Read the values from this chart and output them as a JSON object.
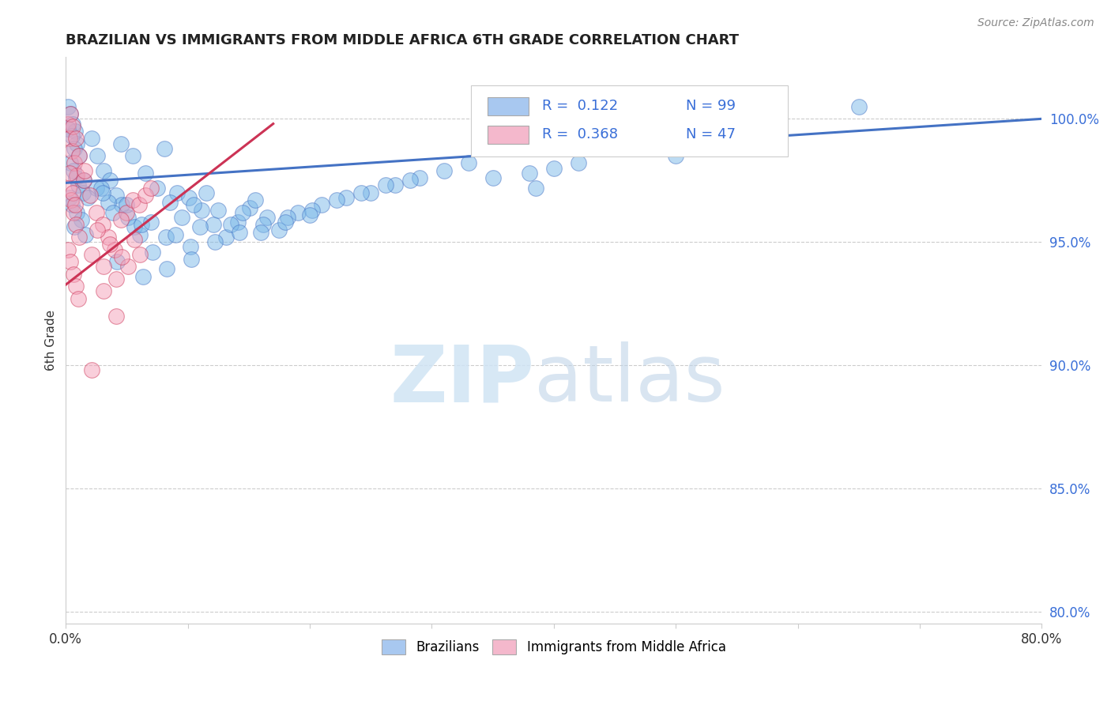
{
  "title": "BRAZILIAN VS IMMIGRANTS FROM MIDDLE AFRICA 6TH GRADE CORRELATION CHART",
  "source": "Source: ZipAtlas.com",
  "ylabel": "6th Grade",
  "xlim": [
    0.0,
    80.0
  ],
  "ylim": [
    79.5,
    102.5
  ],
  "yticks": [
    80.0,
    85.0,
    90.0,
    95.0,
    100.0
  ],
  "ytick_labels": [
    "80.0%",
    "85.0%",
    "90.0%",
    "95.0%",
    "100.0%"
  ],
  "xticks": [
    0.0,
    10.0,
    20.0,
    30.0,
    40.0,
    50.0,
    60.0,
    70.0,
    80.0
  ],
  "legend_color1": "#a8c8f0",
  "legend_color2": "#f4b8cc",
  "line_color1": "#4472c4",
  "line_color2": "#cc3355",
  "scatter_color1": "#7ab8e8",
  "scatter_color2": "#f4a0b8",
  "blue_line": [
    [
      0.0,
      97.4
    ],
    [
      80.0,
      100.0
    ]
  ],
  "pink_line": [
    [
      -2.0,
      92.5
    ],
    [
      17.0,
      99.8
    ]
  ],
  "blue_scatter": [
    [
      0.15,
      100.5
    ],
    [
      0.35,
      100.2
    ],
    [
      0.55,
      99.8
    ],
    [
      0.75,
      99.5
    ],
    [
      0.9,
      99.0
    ],
    [
      0.2,
      99.6
    ],
    [
      0.5,
      99.3
    ],
    [
      0.7,
      98.8
    ],
    [
      1.1,
      98.5
    ],
    [
      0.4,
      98.2
    ],
    [
      0.6,
      97.9
    ],
    [
      0.8,
      97.6
    ],
    [
      1.0,
      97.3
    ],
    [
      1.4,
      97.0
    ],
    [
      0.3,
      96.8
    ],
    [
      0.5,
      96.5
    ],
    [
      0.9,
      96.2
    ],
    [
      1.3,
      95.9
    ],
    [
      0.7,
      95.6
    ],
    [
      1.6,
      95.3
    ],
    [
      2.1,
      99.2
    ],
    [
      2.6,
      98.5
    ],
    [
      3.1,
      97.9
    ],
    [
      3.6,
      97.5
    ],
    [
      4.1,
      96.9
    ],
    [
      4.6,
      96.5
    ],
    [
      5.1,
      96.0
    ],
    [
      5.6,
      95.6
    ],
    [
      6.1,
      95.3
    ],
    [
      7.1,
      94.6
    ],
    [
      8.1,
      98.8
    ],
    [
      9.1,
      97.0
    ],
    [
      10.1,
      96.8
    ],
    [
      11.1,
      96.3
    ],
    [
      12.1,
      95.7
    ],
    [
      13.1,
      95.2
    ],
    [
      14.1,
      95.8
    ],
    [
      15.1,
      96.4
    ],
    [
      2.5,
      97.2
    ],
    [
      3.5,
      96.6
    ],
    [
      4.5,
      99.0
    ],
    [
      5.5,
      98.5
    ],
    [
      6.5,
      97.8
    ],
    [
      7.5,
      97.2
    ],
    [
      8.5,
      96.6
    ],
    [
      9.5,
      96.0
    ],
    [
      10.5,
      96.5
    ],
    [
      11.5,
      97.0
    ],
    [
      12.5,
      96.3
    ],
    [
      13.5,
      95.7
    ],
    [
      14.5,
      96.2
    ],
    [
      15.5,
      96.7
    ],
    [
      16.5,
      96.0
    ],
    [
      17.5,
      95.5
    ],
    [
      19.0,
      96.2
    ],
    [
      21.0,
      96.5
    ],
    [
      23.0,
      96.8
    ],
    [
      25.0,
      97.0
    ],
    [
      27.0,
      97.3
    ],
    [
      29.0,
      97.6
    ],
    [
      31.0,
      97.9
    ],
    [
      33.0,
      98.2
    ],
    [
      35.0,
      97.6
    ],
    [
      38.0,
      97.8
    ],
    [
      40.0,
      98.0
    ],
    [
      42.0,
      98.2
    ],
    [
      50.0,
      98.5
    ],
    [
      65.0,
      100.5
    ],
    [
      1.8,
      96.8
    ],
    [
      2.9,
      97.2
    ],
    [
      3.9,
      96.2
    ],
    [
      6.2,
      95.7
    ],
    [
      8.2,
      95.2
    ],
    [
      10.2,
      94.8
    ],
    [
      12.2,
      95.0
    ],
    [
      14.2,
      95.4
    ],
    [
      16.2,
      95.7
    ],
    [
      18.2,
      96.0
    ],
    [
      20.2,
      96.3
    ],
    [
      22.2,
      96.7
    ],
    [
      24.2,
      97.0
    ],
    [
      26.2,
      97.3
    ],
    [
      28.2,
      97.5
    ],
    [
      1.5,
      97.5
    ],
    [
      3.0,
      97.0
    ],
    [
      5.0,
      96.5
    ],
    [
      7.0,
      95.8
    ],
    [
      9.0,
      95.3
    ],
    [
      11.0,
      95.6
    ],
    [
      16.0,
      95.4
    ],
    [
      18.0,
      95.8
    ],
    [
      20.0,
      96.1
    ],
    [
      4.2,
      94.2
    ],
    [
      6.3,
      93.6
    ],
    [
      8.3,
      93.9
    ],
    [
      10.3,
      94.3
    ],
    [
      38.5,
      97.2
    ]
  ],
  "pink_scatter": [
    [
      0.15,
      99.8
    ],
    [
      0.3,
      99.2
    ],
    [
      0.5,
      98.7
    ],
    [
      0.7,
      98.2
    ],
    [
      0.9,
      97.7
    ],
    [
      0.25,
      97.2
    ],
    [
      0.45,
      96.7
    ],
    [
      0.65,
      96.2
    ],
    [
      0.85,
      95.7
    ],
    [
      1.1,
      95.2
    ],
    [
      0.2,
      94.7
    ],
    [
      0.4,
      94.2
    ],
    [
      0.6,
      93.7
    ],
    [
      0.8,
      93.2
    ],
    [
      1.0,
      92.7
    ],
    [
      0.3,
      97.8
    ],
    [
      0.55,
      97.0
    ],
    [
      0.75,
      96.5
    ],
    [
      1.5,
      97.5
    ],
    [
      2.0,
      96.9
    ],
    [
      2.5,
      96.2
    ],
    [
      3.0,
      95.7
    ],
    [
      3.5,
      95.2
    ],
    [
      4.0,
      94.7
    ],
    [
      5.0,
      96.2
    ],
    [
      5.5,
      96.7
    ],
    [
      4.5,
      95.9
    ],
    [
      6.0,
      96.5
    ],
    [
      6.5,
      96.9
    ],
    [
      7.0,
      97.2
    ],
    [
      2.1,
      94.5
    ],
    [
      3.1,
      94.0
    ],
    [
      4.1,
      93.5
    ],
    [
      5.1,
      94.0
    ],
    [
      6.1,
      94.5
    ],
    [
      0.35,
      100.2
    ],
    [
      0.55,
      99.7
    ],
    [
      0.85,
      99.2
    ],
    [
      1.05,
      98.5
    ],
    [
      1.55,
      97.9
    ],
    [
      2.6,
      95.5
    ],
    [
      3.6,
      94.9
    ],
    [
      4.6,
      94.4
    ],
    [
      5.6,
      95.1
    ],
    [
      3.1,
      93.0
    ],
    [
      4.1,
      92.0
    ],
    [
      2.1,
      89.8
    ]
  ]
}
